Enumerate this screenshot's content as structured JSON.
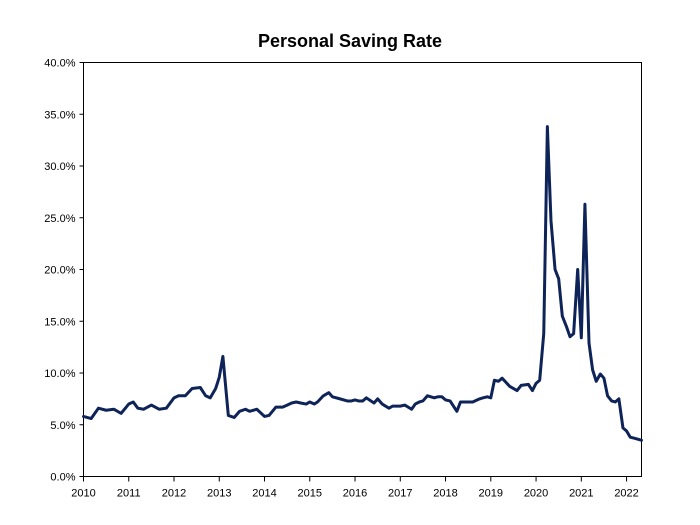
{
  "chart_data": {
    "type": "line",
    "title": "Personal Saving Rate",
    "xlabel": "",
    "ylabel": "",
    "xlim": [
      2010,
      2022.33
    ],
    "ylim": [
      0,
      40
    ],
    "x_ticks": [
      2010,
      2011,
      2012,
      2013,
      2014,
      2015,
      2016,
      2017,
      2018,
      2019,
      2020,
      2021,
      2022
    ],
    "x_tick_labels": [
      "2010",
      "2011",
      "2012",
      "2013",
      "2014",
      "2015",
      "2016",
      "2017",
      "2018",
      "2019",
      "2020",
      "2021",
      "2022"
    ],
    "y_ticks": [
      0,
      5,
      10,
      15,
      20,
      25,
      30,
      35,
      40
    ],
    "y_tick_labels": [
      "0.0%",
      "5.0%",
      "10.0%",
      "15.0%",
      "20.0%",
      "25.0%",
      "30.0%",
      "35.0%",
      "40.0%"
    ],
    "grid": false,
    "legend": "none",
    "color": "#0e2358",
    "series": [
      {
        "name": "Personal Saving Rate",
        "x": [
          2010.0,
          2010.17,
          2010.33,
          2010.5,
          2010.67,
          2010.83,
          2011.0,
          2011.1,
          2011.2,
          2011.33,
          2011.5,
          2011.67,
          2011.83,
          2012.0,
          2012.1,
          2012.25,
          2012.4,
          2012.58,
          2012.7,
          2012.8,
          2012.92,
          2012.95,
          2013.0,
          2013.08,
          2013.2,
          2013.33,
          2013.45,
          2013.58,
          2013.67,
          2013.83,
          2014.0,
          2014.1,
          2014.25,
          2014.4,
          2014.5,
          2014.6,
          2014.7,
          2014.8,
          2014.92,
          2015.0,
          2015.1,
          2015.17,
          2015.3,
          2015.42,
          2015.5,
          2015.67,
          2015.75,
          2015.83,
          2015.92,
          2016.0,
          2016.08,
          2016.17,
          2016.25,
          2016.42,
          2016.5,
          2016.6,
          2016.75,
          2016.83,
          2016.92,
          2017.0,
          2017.1,
          2017.25,
          2017.33,
          2017.42,
          2017.5,
          2017.6,
          2017.75,
          2017.83,
          2017.92,
          2018.0,
          2018.1,
          2018.25,
          2018.33,
          2018.5,
          2018.6,
          2018.75,
          2018.83,
          2018.92,
          2019.0,
          2019.08,
          2019.17,
          2019.25,
          2019.42,
          2019.58,
          2019.67,
          2019.83,
          2019.92,
          2020.0,
          2020.08,
          2020.17,
          2020.25,
          2020.33,
          2020.42,
          2020.5,
          2020.58,
          2020.67,
          2020.75,
          2020.83,
          2020.92,
          2021.0,
          2021.08,
          2021.17,
          2021.25,
          2021.33,
          2021.42,
          2021.5,
          2021.58,
          2021.67,
          2021.75,
          2021.83,
          2021.92,
          2022.0,
          2022.08,
          2022.17,
          2022.25,
          2022.33
        ],
        "y": [
          5.8,
          5.6,
          6.6,
          6.4,
          6.5,
          6.1,
          7.0,
          7.2,
          6.6,
          6.5,
          6.9,
          6.5,
          6.6,
          7.6,
          7.8,
          7.8,
          8.5,
          8.6,
          7.8,
          7.6,
          8.5,
          8.9,
          9.6,
          11.6,
          5.9,
          5.7,
          6.3,
          6.5,
          6.3,
          6.5,
          5.8,
          5.9,
          6.7,
          6.7,
          6.9,
          7.1,
          7.2,
          7.1,
          7.0,
          7.2,
          7.0,
          7.2,
          7.8,
          8.1,
          7.7,
          7.5,
          7.4,
          7.3,
          7.3,
          7.4,
          7.3,
          7.3,
          7.6,
          7.1,
          7.5,
          7.0,
          6.6,
          6.8,
          6.8,
          6.8,
          6.9,
          6.5,
          7.0,
          7.2,
          7.3,
          7.8,
          7.6,
          7.7,
          7.7,
          7.4,
          7.3,
          6.3,
          7.2,
          7.2,
          7.2,
          7.5,
          7.6,
          7.7,
          7.6,
          9.3,
          9.2,
          9.5,
          8.7,
          8.3,
          8.8,
          8.9,
          8.3,
          9.0,
          9.3,
          13.8,
          33.8,
          24.7,
          20.0,
          19.1,
          15.5,
          14.5,
          13.5,
          13.8,
          20.0,
          13.4,
          26.3,
          12.9,
          10.3,
          9.2,
          9.9,
          9.5,
          7.8,
          7.3,
          7.2,
          7.5,
          4.7,
          4.4,
          3.8,
          3.7,
          3.6,
          3.5
        ]
      }
    ]
  }
}
